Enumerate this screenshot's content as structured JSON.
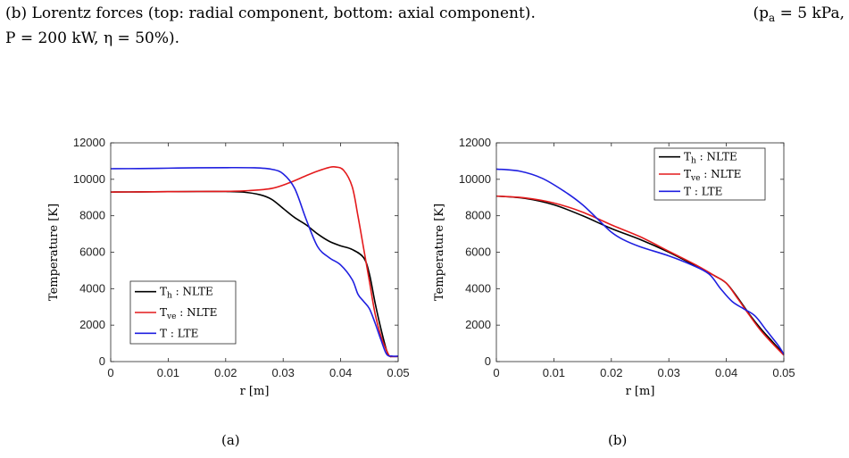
{
  "caption": {
    "line1_text": "(b) Lorentz forces (top: radial component, bottom: axial component).",
    "line1_param": "(p",
    "line1_param_sub": "a",
    "line1_param_rest": " = 5 kPa,",
    "line2": "P = 200 kW, η = 50%)."
  },
  "panels": [
    {
      "label": "(a)"
    },
    {
      "label": "(b)"
    }
  ],
  "chart_data": [
    {
      "type": "line",
      "xlabel": "r [m]",
      "ylabel": "Temperature [K]",
      "xlim": [
        0,
        0.05
      ],
      "ylim": [
        0,
        12000
      ],
      "xticks": [
        "0",
        "0.01",
        "0.02",
        "0.03",
        "0.04",
        "0.05"
      ],
      "yticks": [
        "0",
        "2000",
        "4000",
        "6000",
        "8000",
        "10000",
        "12000"
      ],
      "legend_position": "bottom-left",
      "series": [
        {
          "name": "T_h : NLTE",
          "label_main": "T",
          "label_sub": "h",
          "label_rest": " : NLTE",
          "color": "#000000",
          "x": [
            0,
            0.005,
            0.01,
            0.015,
            0.02,
            0.023,
            0.026,
            0.028,
            0.03,
            0.032,
            0.034,
            0.036,
            0.038,
            0.04,
            0.042,
            0.044,
            0.045,
            0.046,
            0.047,
            0.048,
            0.0485,
            0.049,
            0.05
          ],
          "y": [
            9300,
            9310,
            9320,
            9330,
            9330,
            9300,
            9150,
            8900,
            8400,
            7900,
            7500,
            7000,
            6600,
            6350,
            6150,
            5700,
            4800,
            3200,
            1800,
            600,
            300,
            280,
            280
          ]
        },
        {
          "name": "T_ve : NLTE",
          "label_main": "T",
          "label_sub": "ve",
          "label_rest": " : NLTE",
          "color": "#e41a1c",
          "x": [
            0,
            0.005,
            0.01,
            0.015,
            0.02,
            0.024,
            0.028,
            0.031,
            0.034,
            0.036,
            0.038,
            0.039,
            0.0405,
            0.042,
            0.043,
            0.044,
            0.045,
            0.046,
            0.047,
            0.048,
            0.0485,
            0.049,
            0.05
          ],
          "y": [
            9300,
            9310,
            9320,
            9330,
            9340,
            9380,
            9500,
            9800,
            10200,
            10450,
            10650,
            10680,
            10500,
            9600,
            8000,
            6200,
            4400,
            2600,
            1400,
            600,
            300,
            280,
            280
          ]
        },
        {
          "name": "T : LTE",
          "label_main": "T",
          "label_sub": "",
          "label_rest": " : LTE",
          "color": "#1f1fe0",
          "x": [
            0,
            0.005,
            0.01,
            0.015,
            0.02,
            0.025,
            0.028,
            0.03,
            0.032,
            0.034,
            0.036,
            0.038,
            0.04,
            0.042,
            0.043,
            0.044,
            0.045,
            0.046,
            0.047,
            0.048,
            0.049,
            0.05
          ],
          "y": [
            10580,
            10590,
            10610,
            10630,
            10640,
            10630,
            10550,
            10300,
            9500,
            7800,
            6300,
            5700,
            5300,
            4500,
            3700,
            3300,
            2900,
            2100,
            1200,
            400,
            300,
            300
          ]
        }
      ]
    },
    {
      "type": "line",
      "xlabel": "r [m]",
      "ylabel": "Temperature [K]",
      "xlim": [
        0,
        0.05
      ],
      "ylim": [
        0,
        12000
      ],
      "xticks": [
        "0",
        "0.01",
        "0.02",
        "0.03",
        "0.04",
        "0.05"
      ],
      "yticks": [
        "0",
        "2000",
        "4000",
        "6000",
        "8000",
        "10000",
        "12000"
      ],
      "legend_position": "top-right",
      "series": [
        {
          "name": "T_h : NLTE",
          "label_main": "T",
          "label_sub": "h",
          "label_rest": " : NLTE",
          "color": "#000000",
          "x": [
            0,
            0.005,
            0.01,
            0.015,
            0.02,
            0.025,
            0.03,
            0.035,
            0.038,
            0.04,
            0.042,
            0.044,
            0.046,
            0.048,
            0.05
          ],
          "y": [
            9080,
            8950,
            8600,
            8000,
            7300,
            6700,
            6000,
            5200,
            4700,
            4300,
            3500,
            2600,
            1800,
            1100,
            400
          ]
        },
        {
          "name": "T_ve : NLTE",
          "label_main": "T",
          "label_sub": "ve",
          "label_rest": " : NLTE",
          "color": "#e41a1c",
          "x": [
            0,
            0.005,
            0.01,
            0.015,
            0.02,
            0.025,
            0.03,
            0.035,
            0.038,
            0.04,
            0.042,
            0.044,
            0.046,
            0.048,
            0.05
          ],
          "y": [
            9080,
            8980,
            8700,
            8200,
            7500,
            6850,
            6050,
            5250,
            4700,
            4300,
            3450,
            2550,
            1700,
            1000,
            350
          ]
        },
        {
          "name": "T : LTE",
          "label_main": "T",
          "label_sub": "",
          "label_rest": " : LTE",
          "color": "#1f1fe0",
          "x": [
            0,
            0.004,
            0.008,
            0.012,
            0.015,
            0.018,
            0.02,
            0.022,
            0.025,
            0.03,
            0.034,
            0.037,
            0.039,
            0.041,
            0.043,
            0.045,
            0.047,
            0.049,
            0.05
          ],
          "y": [
            10560,
            10450,
            10050,
            9300,
            8600,
            7700,
            7100,
            6700,
            6300,
            5800,
            5300,
            4800,
            4000,
            3300,
            2900,
            2500,
            1700,
            900,
            400
          ]
        }
      ]
    }
  ]
}
